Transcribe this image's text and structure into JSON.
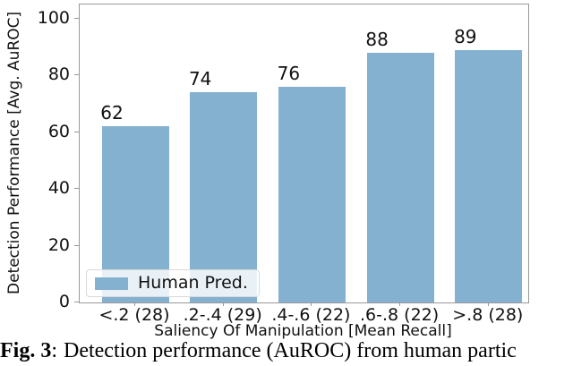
{
  "chart_data": {
    "type": "bar",
    "title": "",
    "categories": [
      "<.2 (28)",
      ".2-.4 (29)",
      ".4-.6 (22)",
      ".6-.8 (22)",
      ">.8 (28)"
    ],
    "values": [
      62,
      74,
      76,
      88,
      89
    ],
    "series": [
      {
        "name": "Human Pred.",
        "values": [
          62,
          74,
          76,
          88,
          89
        ]
      }
    ],
    "xlabel": "Saliency Of Manipulation [Mean Recall]",
    "ylabel": "Detection Performance [Avg. AuROC]",
    "ylim": [
      0,
      105
    ],
    "yticks": [
      0,
      20,
      40,
      60,
      80,
      100
    ],
    "grid": false,
    "legend_position": "lower left",
    "bar_color": "#85b1d1",
    "spine_color": "#999999"
  },
  "legend": {
    "entries": [
      {
        "label": "Human Pred.",
        "swatch_color": "#85b1d1"
      }
    ]
  },
  "caption": {
    "label": "Fig. 3",
    "separator": ":",
    "text": "Detection performance (AuROC) from human partic"
  }
}
